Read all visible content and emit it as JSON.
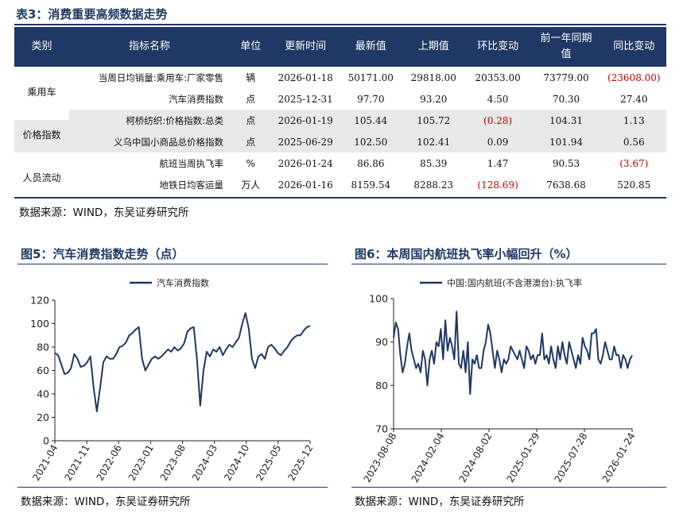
{
  "table": {
    "title": "表3：消费重要高频数据走势",
    "headers": [
      "类别",
      "指标名称",
      "单位",
      "更新时间",
      "最新值",
      "上期值",
      "环比变动",
      "前一年同期值",
      "同比变动"
    ],
    "rows": [
      {
        "category": "乘用车",
        "name": "当周日均销量:乘用车:厂家零售",
        "unit": "辆",
        "date": "2026-01-18",
        "latest": "50171.00",
        "previous": "29818.00",
        "mom": "20353.00",
        "mom_neg": false,
        "yearago": "73779.00",
        "yoy": "(23608.00)",
        "yoy_neg": true
      },
      {
        "category": "",
        "name": "汽车消费指数",
        "unit": "点",
        "date": "2025-12-31",
        "latest": "97.70",
        "previous": "93.20",
        "mom": "4.50",
        "mom_neg": false,
        "yearago": "70.30",
        "yoy": "27.40",
        "yoy_neg": false
      },
      {
        "category": "价格指数",
        "name": "柯桥纺织:价格指数:总类",
        "unit": "点",
        "date": "2026-01-19",
        "latest": "105.44",
        "previous": "105.72",
        "mom": "(0.28)",
        "mom_neg": true,
        "yearago": "104.31",
        "yoy": "1.13",
        "yoy_neg": false
      },
      {
        "category": "",
        "name": "义乌中国小商品总价格指数",
        "unit": "点",
        "date": "2025-06-29",
        "latest": "102.50",
        "previous": "102.41",
        "mom": "0.09",
        "mom_neg": false,
        "yearago": "101.94",
        "yoy": "0.56",
        "yoy_neg": false
      },
      {
        "category": "人员流动",
        "name": "航班当周执飞率",
        "unit": "%",
        "date": "2026-01-24",
        "latest": "86.86",
        "previous": "85.39",
        "mom": "1.47",
        "mom_neg": false,
        "yearago": "90.53",
        "yoy": "(3.67)",
        "yoy_neg": true
      },
      {
        "category": "",
        "name": "地铁日均客运量",
        "unit": "万人",
        "date": "2026-01-16",
        "latest": "8159.54",
        "previous": "8288.23",
        "mom": "(128.69)",
        "mom_neg": true,
        "yearago": "7638.68",
        "yoy": "520.85",
        "yoy_neg": false
      }
    ],
    "source": "数据来源：WIND，东吴证券研究所"
  },
  "chart_left": {
    "title": "图5：汽车消费指数走势（点）",
    "source": "数据来源：WIND，东吴证券研究所"
  },
  "chart_right": {
    "title": "图6：本周国内航班执飞率小幅回升（%）",
    "source": "数据来源：WIND，东吴证券研究所"
  },
  "colors": {
    "navy": "#1f3864",
    "negative": "#c00000"
  },
  "chart_data": [
    {
      "type": "line",
      "legend": "汽车消费指数",
      "x_ticks": [
        "2021-04",
        "2021-11",
        "2022-06",
        "2023-01",
        "2023-08",
        "2024-03",
        "2024-10",
        "2025-05",
        "2025-12"
      ],
      "ylim": [
        0,
        120
      ],
      "y_ticks": [
        0,
        20,
        40,
        60,
        80,
        100,
        120
      ],
      "values": [
        75,
        73,
        65,
        57,
        58,
        62,
        74,
        70,
        63,
        64,
        67,
        72,
        45,
        25,
        45,
        67,
        72,
        70,
        70,
        74,
        80,
        81,
        84,
        90,
        92,
        95,
        97,
        70,
        60,
        65,
        70,
        72,
        70,
        72,
        75,
        78,
        76,
        80,
        77,
        79,
        83,
        93,
        96,
        97,
        69,
        30,
        60,
        76,
        72,
        78,
        76,
        80,
        73,
        78,
        82,
        80,
        84,
        88,
        100,
        109,
        96,
        70,
        62,
        72,
        74,
        70,
        80,
        82,
        79,
        75,
        73,
        77,
        80,
        85,
        88,
        90,
        90,
        94,
        97,
        98
      ]
    },
    {
      "type": "line",
      "legend": "中国:国内航班(不含港澳台):执飞率",
      "x_ticks": [
        "2023-08-08",
        "2024-02-04",
        "2024-08-02",
        "2025-01-29",
        "2025-07-28",
        "2026-01-24"
      ],
      "ylim": [
        70,
        100
      ],
      "y_ticks": [
        70,
        80,
        90,
        100
      ],
      "values": [
        91,
        94.5,
        93,
        87,
        83,
        85,
        89,
        92,
        88,
        86,
        84,
        85,
        83,
        88,
        86,
        80,
        86,
        88,
        85,
        90,
        89,
        93,
        86,
        95,
        88,
        91,
        89,
        86,
        97,
        85,
        84,
        88,
        83,
        90,
        78,
        86,
        85,
        87,
        84,
        84,
        88,
        90,
        94,
        92,
        88,
        84,
        88,
        86,
        83,
        86,
        85,
        86,
        89,
        88,
        87,
        86,
        88,
        86,
        84,
        89,
        88,
        86,
        87,
        85,
        87,
        87,
        92,
        86,
        87,
        85,
        89,
        86,
        84,
        89,
        86,
        90,
        87,
        85,
        90,
        88,
        86,
        84,
        87,
        85,
        91,
        89,
        88,
        86,
        92,
        92,
        93,
        86,
        85,
        87,
        90,
        88,
        86,
        86,
        89,
        87,
        87,
        84,
        87,
        86,
        84,
        86,
        86.9
      ]
    }
  ]
}
